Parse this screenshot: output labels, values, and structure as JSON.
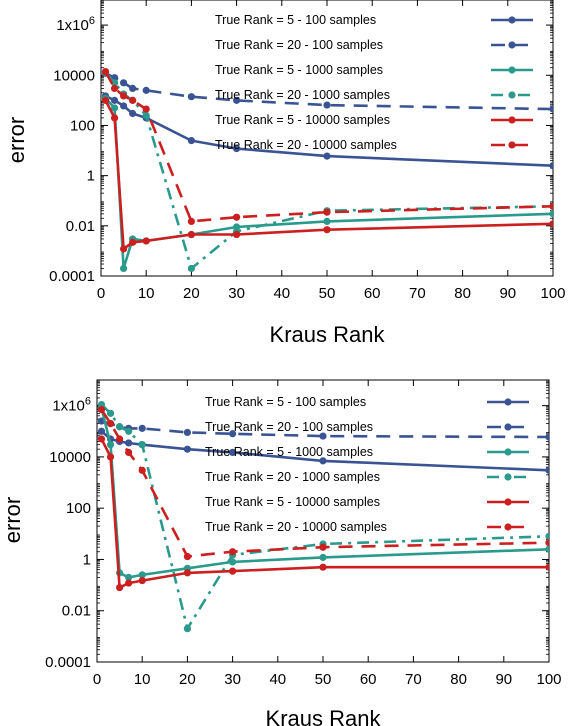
{
  "chart_data": [
    {
      "type": "line",
      "xlabel": "Kraus Rank",
      "ylabel": "error",
      "y_scale": "log",
      "xlim": [
        0,
        100
      ],
      "ylim": [
        0.0001,
        10000000
      ],
      "x_ticks": [
        0,
        10,
        20,
        30,
        40,
        50,
        60,
        70,
        80,
        90,
        100
      ],
      "x_tick_labels": [
        "0",
        "10",
        "20",
        "30",
        "40",
        "50",
        "60",
        "70",
        "80",
        "90",
        "100"
      ],
      "y_ticks": [
        0.0001,
        0.01,
        1,
        100,
        10000,
        1000000
      ],
      "y_tick_labels": [
        "0.0001",
        "0.01",
        "1",
        "100",
        "10000",
        "1x10^6"
      ],
      "legend_placement": "top-right",
      "x": [
        1,
        3,
        5,
        7,
        10,
        20,
        30,
        50,
        100
      ],
      "series": [
        {
          "name": "True Rank = 5 - 100 samples",
          "color": "#3a5493",
          "dash": "solid",
          "values": [
            1500,
            1000,
            600,
            300,
            200,
            25,
            12,
            6,
            2.5
          ]
        },
        {
          "name": "True Rank = 20 - 100 samples",
          "color": "#3a5493",
          "dash": "dashed",
          "values": [
            12000,
            8000,
            5000,
            3000,
            2500,
            1400,
            1000,
            650,
            450
          ]
        },
        {
          "name": "True Rank = 5 - 1000 samples",
          "color": "#2a9a8c",
          "dash": "solid",
          "values": [
            1200,
            500,
            0.0002,
            0.003,
            0.0025,
            0.0045,
            0.009,
            0.015,
            0.03
          ]
        },
        {
          "name": "True Rank = 20 - 1000 samples",
          "color": "#2a9a8c",
          "dash": "dashdot",
          "values": [
            13000,
            5000,
            1800,
            1000,
            250,
            0.0002,
            0.006,
            0.04,
            0.06
          ]
        },
        {
          "name": "True Rank = 5 - 10000 samples",
          "color": "#cc1f1f",
          "dash": "solid",
          "values": [
            1000,
            200,
            0.0012,
            0.0022,
            0.0025,
            0.0045,
            0.0045,
            0.007,
            0.012
          ]
        },
        {
          "name": "True Rank = 20 - 10000 samples",
          "color": "#cc1f1f",
          "dash": "dashed",
          "values": [
            14000,
            3000,
            1500,
            1000,
            450,
            0.015,
            0.022,
            0.035,
            0.06
          ]
        }
      ]
    },
    {
      "type": "line",
      "xlabel": "Kraus Rank",
      "ylabel": "error",
      "y_scale": "log",
      "xlim": [
        0,
        100
      ],
      "ylim": [
        0.0001,
        10000000
      ],
      "x_ticks": [
        0,
        10,
        20,
        30,
        40,
        50,
        60,
        70,
        80,
        90,
        100
      ],
      "x_tick_labels": [
        "0",
        "10",
        "20",
        "30",
        "40",
        "50",
        "60",
        "70",
        "80",
        "90",
        "100"
      ],
      "y_ticks": [
        0.0001,
        0.01,
        1,
        100,
        10000,
        1000000
      ],
      "y_tick_labels": [
        "0.0001",
        "0.01",
        "1",
        "100",
        "10000",
        "1x10^6"
      ],
      "legend_placement": "top-right",
      "x": [
        1,
        3,
        5,
        7,
        10,
        20,
        30,
        50,
        100
      ],
      "series": [
        {
          "name": "True Rank = 5 - 100 samples",
          "color": "#3a5493",
          "dash": "solid",
          "values": [
            100000,
            50000,
            40000,
            35000,
            30000,
            20000,
            15000,
            7000,
            3000
          ]
        },
        {
          "name": "True Rank = 20 - 100 samples",
          "color": "#3a5493",
          "dash": "dashed",
          "values": [
            250000,
            200000,
            150000,
            130000,
            130000,
            90000,
            80000,
            65000,
            60000
          ]
        },
        {
          "name": "True Rank = 5 - 1000 samples",
          "color": "#2a9a8c",
          "dash": "solid",
          "values": [
            800000,
            30000,
            0.3,
            0.2,
            0.25,
            0.45,
            0.8,
            1.2,
            2.5
          ]
        },
        {
          "name": "True Rank = 20 - 1000 samples",
          "color": "#2a9a8c",
          "dash": "dashdot",
          "values": [
            1100000,
            500000,
            150000,
            100000,
            30000,
            0.002,
            1.5,
            4,
            8
          ]
        },
        {
          "name": "True Rank = 5 - 10000 samples",
          "color": "#cc1f1f",
          "dash": "solid",
          "values": [
            50000,
            10000,
            0.08,
            0.12,
            0.15,
            0.3,
            0.35,
            0.5,
            0.5
          ]
        },
        {
          "name": "True Rank = 20 - 10000 samples",
          "color": "#cc1f1f",
          "dash": "dashed",
          "values": [
            700000,
            200000,
            50000,
            15000,
            3000,
            1.3,
            2,
            3,
            4.5
          ]
        }
      ]
    }
  ]
}
